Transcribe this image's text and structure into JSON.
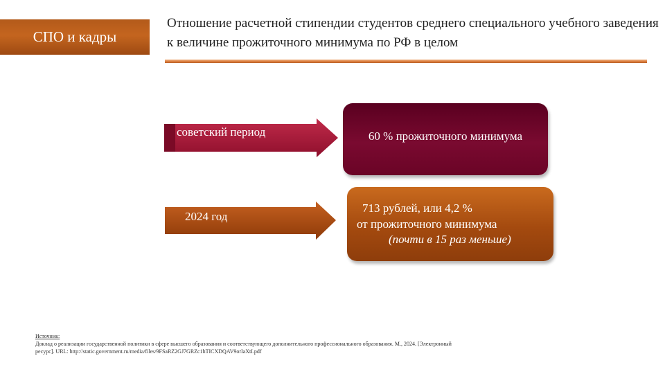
{
  "section_tag": "СПО и кадры",
  "title": "Отношение расчетной стипендии студентов среднего специального учебного заведения к величине прожиточного минимума по РФ в целом",
  "rows": [
    {
      "label": "советский  период",
      "value": "60 % прожиточного минимума"
    },
    {
      "label": "2024 год",
      "value_line1": "713 рублей, или 4,2 %",
      "value_line2": "от прожиточного минимума",
      "value_note": "(почти в 15 раз меньше)"
    }
  ],
  "source": {
    "heading": "Источник:",
    "text": "Доклад о реализации государственной политики в сфере высшего образования и соответствующего дополнительного профессионального образования. М., 2024. [Электронный ресурс]. URL: http://static.government.ru/media/files/9FSaRZ2GJ7GRZc1hTICXDQAV9orIaXtI.pdf"
  },
  "colors": {
    "tag_orange": "#c4651f",
    "soviet_crimson": "#a3183a",
    "soviet_box": "#6e0628",
    "modern_orange": "#a44a0f",
    "title_underline": "#d97a3a"
  }
}
